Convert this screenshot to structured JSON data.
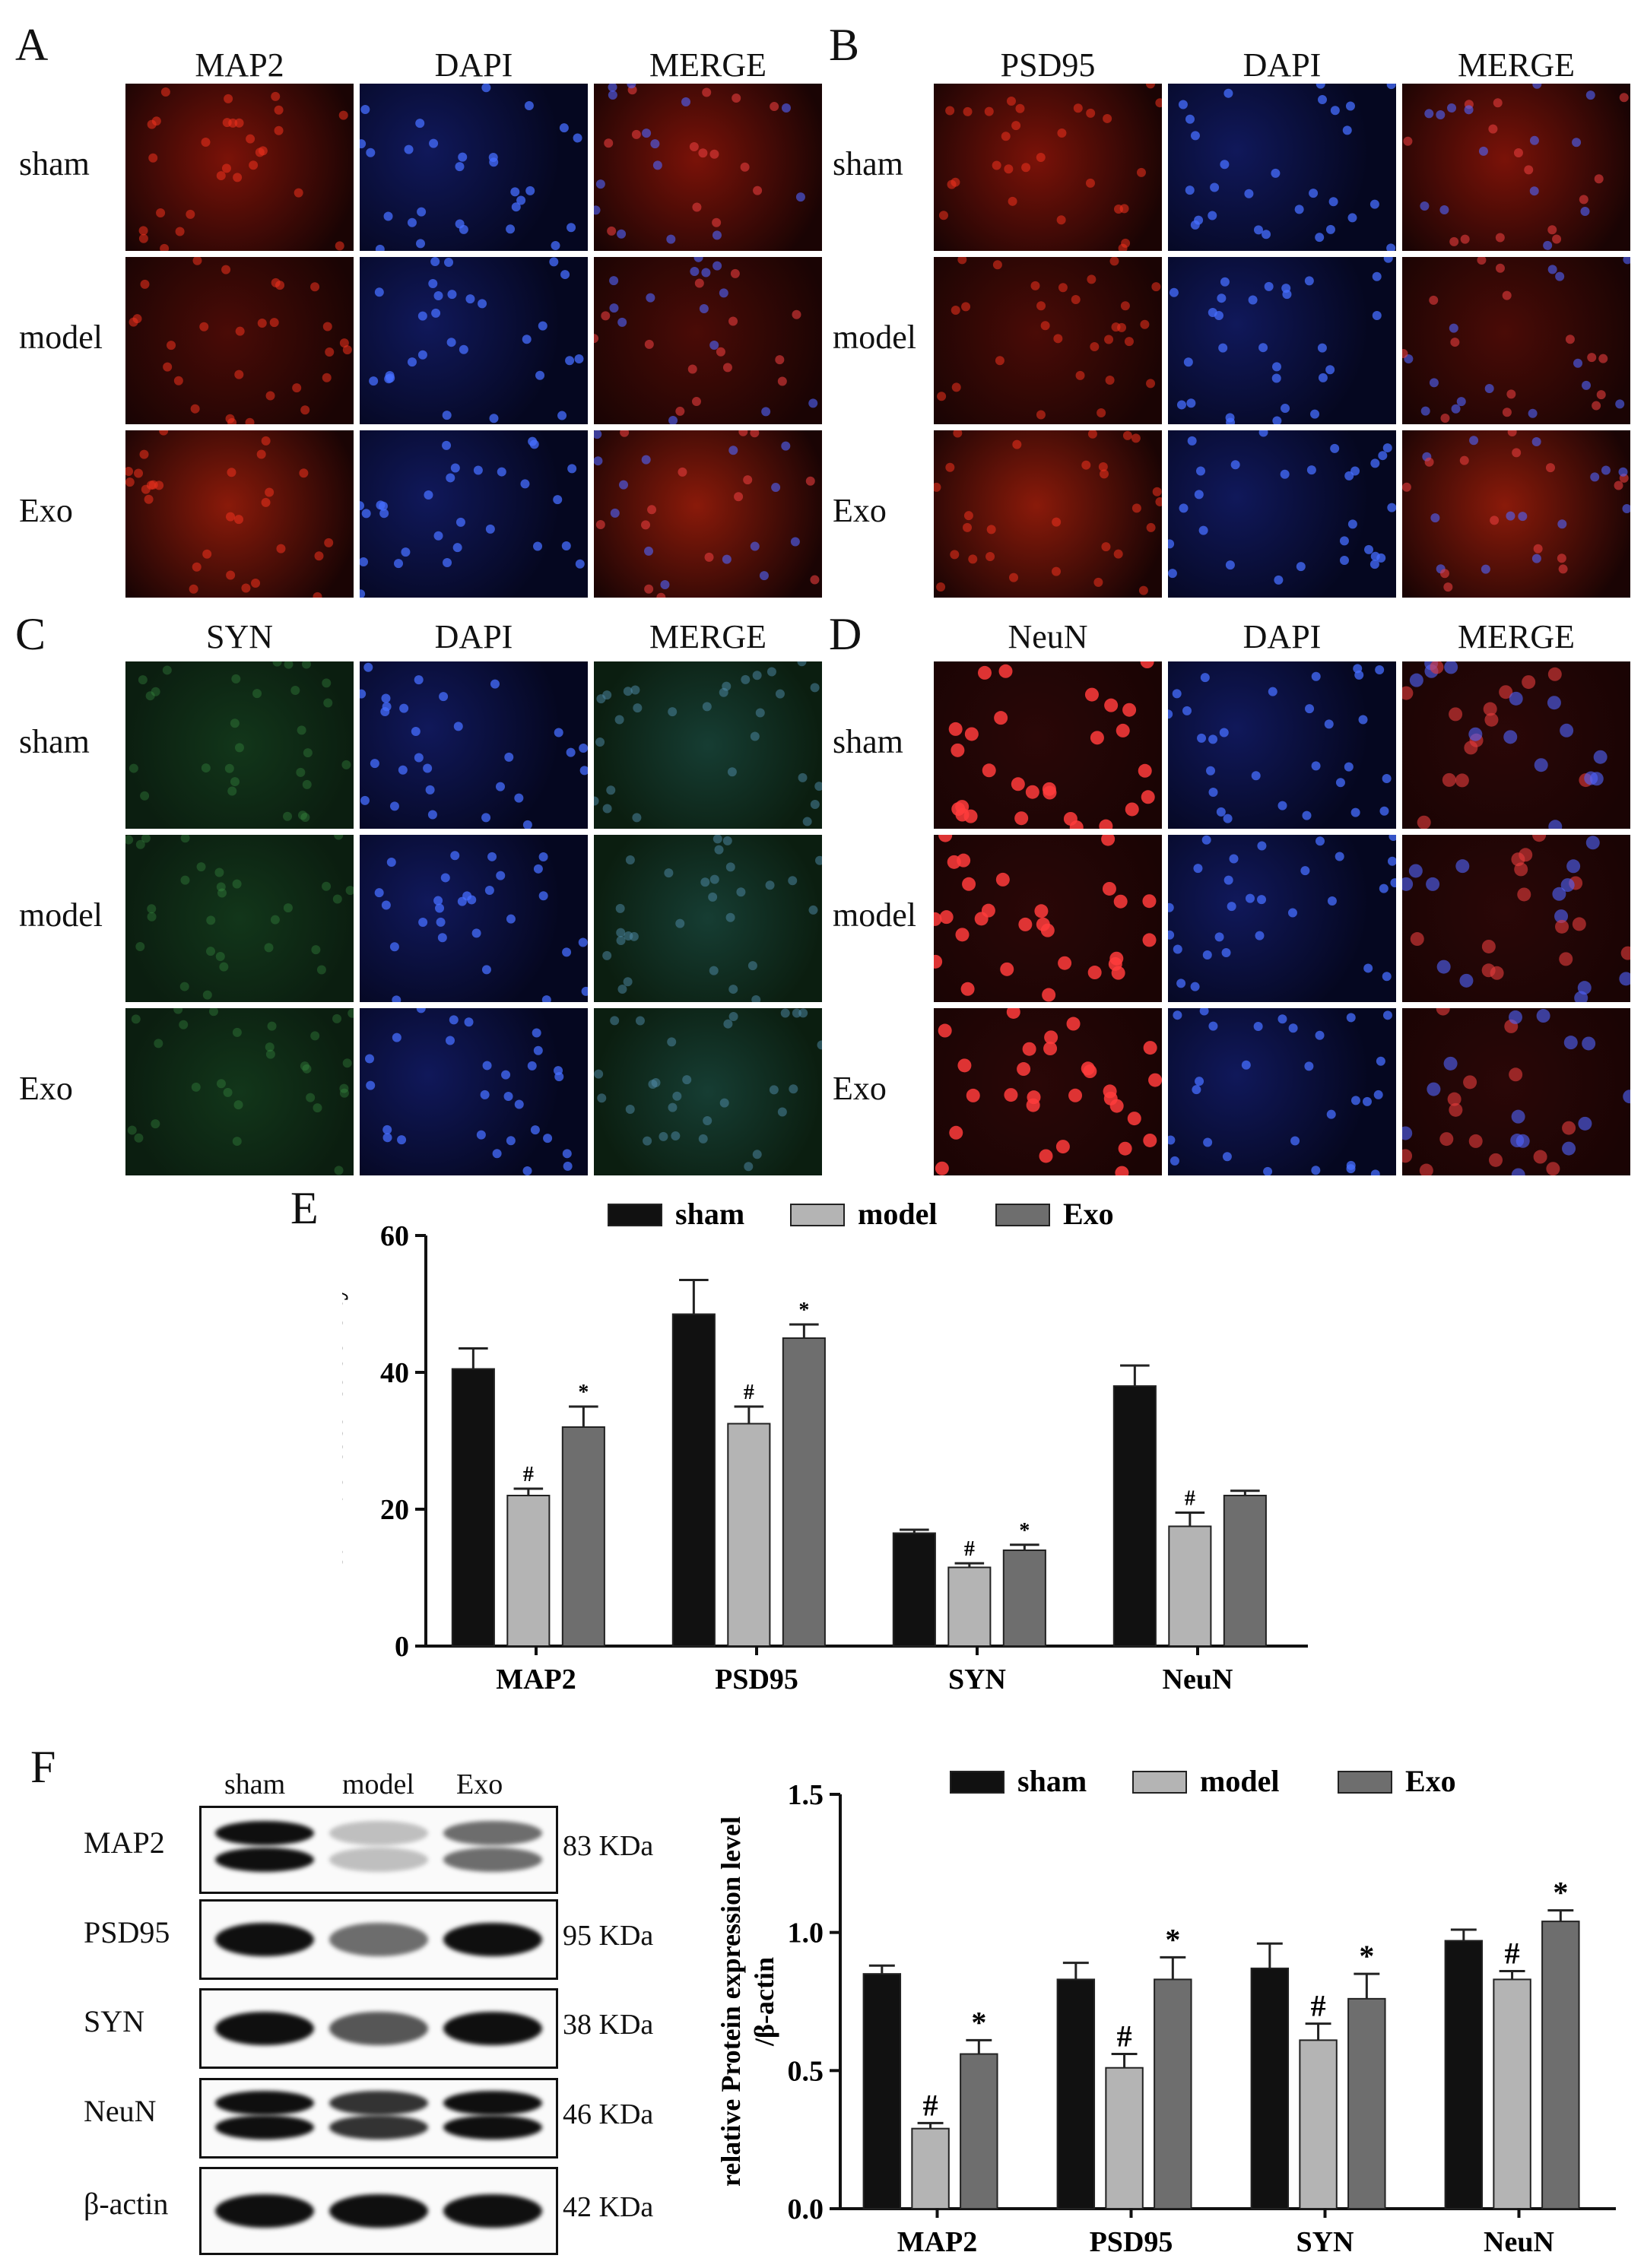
{
  "panels": {
    "A": {
      "letter": "A",
      "cols": [
        "MAP2",
        "DAPI",
        "MERGE"
      ],
      "rows": [
        "sham",
        "model",
        "Exo"
      ],
      "stain": "red"
    },
    "B": {
      "letter": "B",
      "cols": [
        "PSD95",
        "DAPI",
        "MERGE"
      ],
      "rows": [
        "sham",
        "model",
        "Exo"
      ],
      "stain": "red"
    },
    "C": {
      "letter": "C",
      "cols": [
        "SYN",
        "DAPI",
        "MERGE"
      ],
      "rows": [
        "sham",
        "model",
        "Exo"
      ],
      "stain": "green"
    },
    "D": {
      "letter": "D",
      "cols": [
        "NeuN",
        "DAPI",
        "MERGE"
      ],
      "rows": [
        "sham",
        "model",
        "Exo"
      ],
      "stain": "redcell"
    }
  },
  "panel_E_letter": "E",
  "panel_F_letter": "F",
  "colors": {
    "sham": "#111111",
    "model": "#b4b4b4",
    "exo": "#6e6e6e",
    "axis": "#111111"
  },
  "chart_data": [
    {
      "type": "bar",
      "title": "",
      "xlabel": "",
      "ylabel": "Mean fluorescence density",
      "ylim": [
        0,
        60
      ],
      "yticks": [
        0,
        20,
        40,
        60
      ],
      "categories": [
        "MAP2",
        "PSD95",
        "SYN",
        "NeuN"
      ],
      "legend": {
        "position": "top",
        "entries": [
          "sham",
          "model",
          "Exo"
        ]
      },
      "series": [
        {
          "name": "sham",
          "values": [
            40.5,
            48.5,
            16.5,
            38
          ],
          "errors": [
            3,
            5,
            0.5,
            3
          ],
          "marks": [
            "",
            "",
            "",
            ""
          ]
        },
        {
          "name": "model",
          "values": [
            22,
            32.5,
            11.5,
            17.5
          ],
          "errors": [
            1,
            2.5,
            0.6,
            2
          ],
          "marks": [
            "#",
            "#",
            "#",
            "#"
          ]
        },
        {
          "name": "Exo",
          "values": [
            32,
            45,
            14,
            22
          ],
          "errors": [
            3,
            2,
            0.8,
            0.7
          ],
          "marks": [
            "*",
            "*",
            "*",
            ""
          ]
        }
      ]
    },
    {
      "type": "bar",
      "title": "",
      "xlabel": "",
      "ylabel": "relative Protein expression level /β-actin",
      "ylabel_lines": [
        "relative Protein expression level",
        "/β-actin"
      ],
      "ylim": [
        0,
        1.5
      ],
      "yticks": [
        "0.0",
        "0.5",
        "1.0",
        "1.5"
      ],
      "categories": [
        "MAP2",
        "PSD95",
        "SYN",
        "NeuN"
      ],
      "legend": {
        "position": "top",
        "entries": [
          "sham",
          "model",
          "Exo"
        ]
      },
      "series": [
        {
          "name": "sham",
          "values": [
            0.85,
            0.83,
            0.87,
            0.97
          ],
          "errors": [
            0.03,
            0.06,
            0.09,
            0.04
          ],
          "marks": [
            "",
            "",
            "",
            ""
          ]
        },
        {
          "name": "model",
          "values": [
            0.29,
            0.51,
            0.61,
            0.83
          ],
          "errors": [
            0.02,
            0.05,
            0.06,
            0.03
          ],
          "marks": [
            "#",
            "#",
            "#",
            "#"
          ]
        },
        {
          "name": "Exo",
          "values": [
            0.56,
            0.83,
            0.76,
            1.04
          ],
          "errors": [
            0.05,
            0.08,
            0.09,
            0.04
          ],
          "marks": [
            "*",
            "*",
            "*",
            "*"
          ]
        }
      ]
    }
  ],
  "blot": {
    "lanes": [
      "sham",
      "model",
      "Exo"
    ],
    "rows": [
      {
        "label": "MAP2",
        "kda": "83 KDa",
        "intensity": [
          1.0,
          0.25,
          0.6
        ],
        "double": true
      },
      {
        "label": "PSD95",
        "kda": "95 KDa",
        "intensity": [
          1.0,
          0.6,
          1.0
        ],
        "double": false
      },
      {
        "label": "SYN",
        "kda": "38 KDa",
        "intensity": [
          1.0,
          0.7,
          1.0
        ],
        "double": false
      },
      {
        "label": "NeuN",
        "kda": "46 KDa",
        "intensity": [
          1.0,
          0.85,
          1.0
        ],
        "double": true
      },
      {
        "label": "β-actin",
        "kda": "42 KDa",
        "intensity": [
          1.0,
          1.0,
          1.0
        ],
        "double": false
      }
    ]
  }
}
